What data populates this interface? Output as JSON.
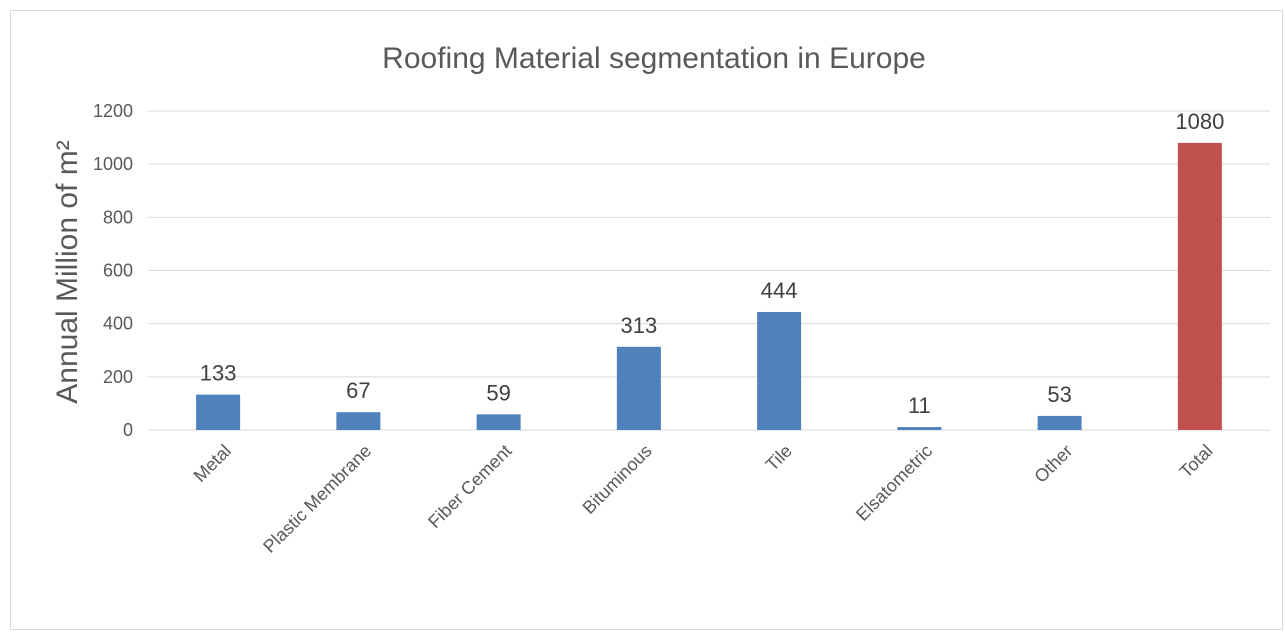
{
  "chart_data": {
    "type": "bar",
    "title": "Roofing Material segmentation in Europe",
    "ylabel": "Annual Million of m²",
    "xlabel": "",
    "categories": [
      "Metal",
      "Plastic Membrane",
      "Fiber Cement",
      "Bituminous",
      "Tile",
      "Elsatometric",
      "Other",
      "Total"
    ],
    "values": [
      133,
      67,
      59,
      313,
      444,
      11,
      53,
      1080
    ],
    "ylim": [
      0,
      1200
    ],
    "yticks": [
      0,
      200,
      400,
      600,
      800,
      1000,
      1200
    ],
    "grid": true,
    "legend": "none",
    "colors": {
      "bar": "#4f81bd",
      "total_bar": "#c0504d",
      "grid": "#d9d9d9",
      "text": "#595959"
    }
  }
}
